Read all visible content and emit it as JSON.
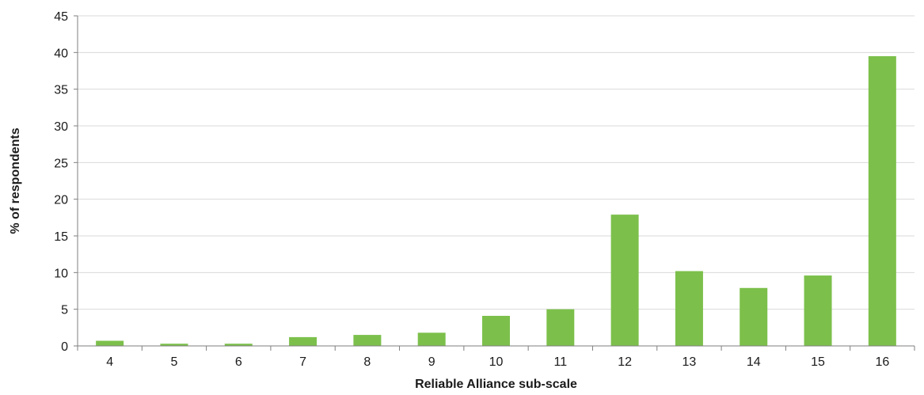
{
  "chart_data": {
    "type": "bar",
    "title": "",
    "xlabel": "Reliable Alliance sub-scale",
    "ylabel": "% of respondents",
    "categories": [
      "4",
      "5",
      "6",
      "7",
      "8",
      "9",
      "10",
      "11",
      "12",
      "13",
      "14",
      "15",
      "16"
    ],
    "values": [
      0.7,
      0.3,
      0.3,
      1.2,
      1.5,
      1.8,
      4.1,
      5.0,
      17.9,
      10.2,
      7.9,
      9.6,
      39.5
    ],
    "ylim": [
      0,
      45
    ],
    "yticks": [
      0,
      5,
      10,
      15,
      20,
      25,
      30,
      35,
      40,
      45
    ],
    "grid": true,
    "bar_color": "#7cc04b",
    "legend": false
  }
}
